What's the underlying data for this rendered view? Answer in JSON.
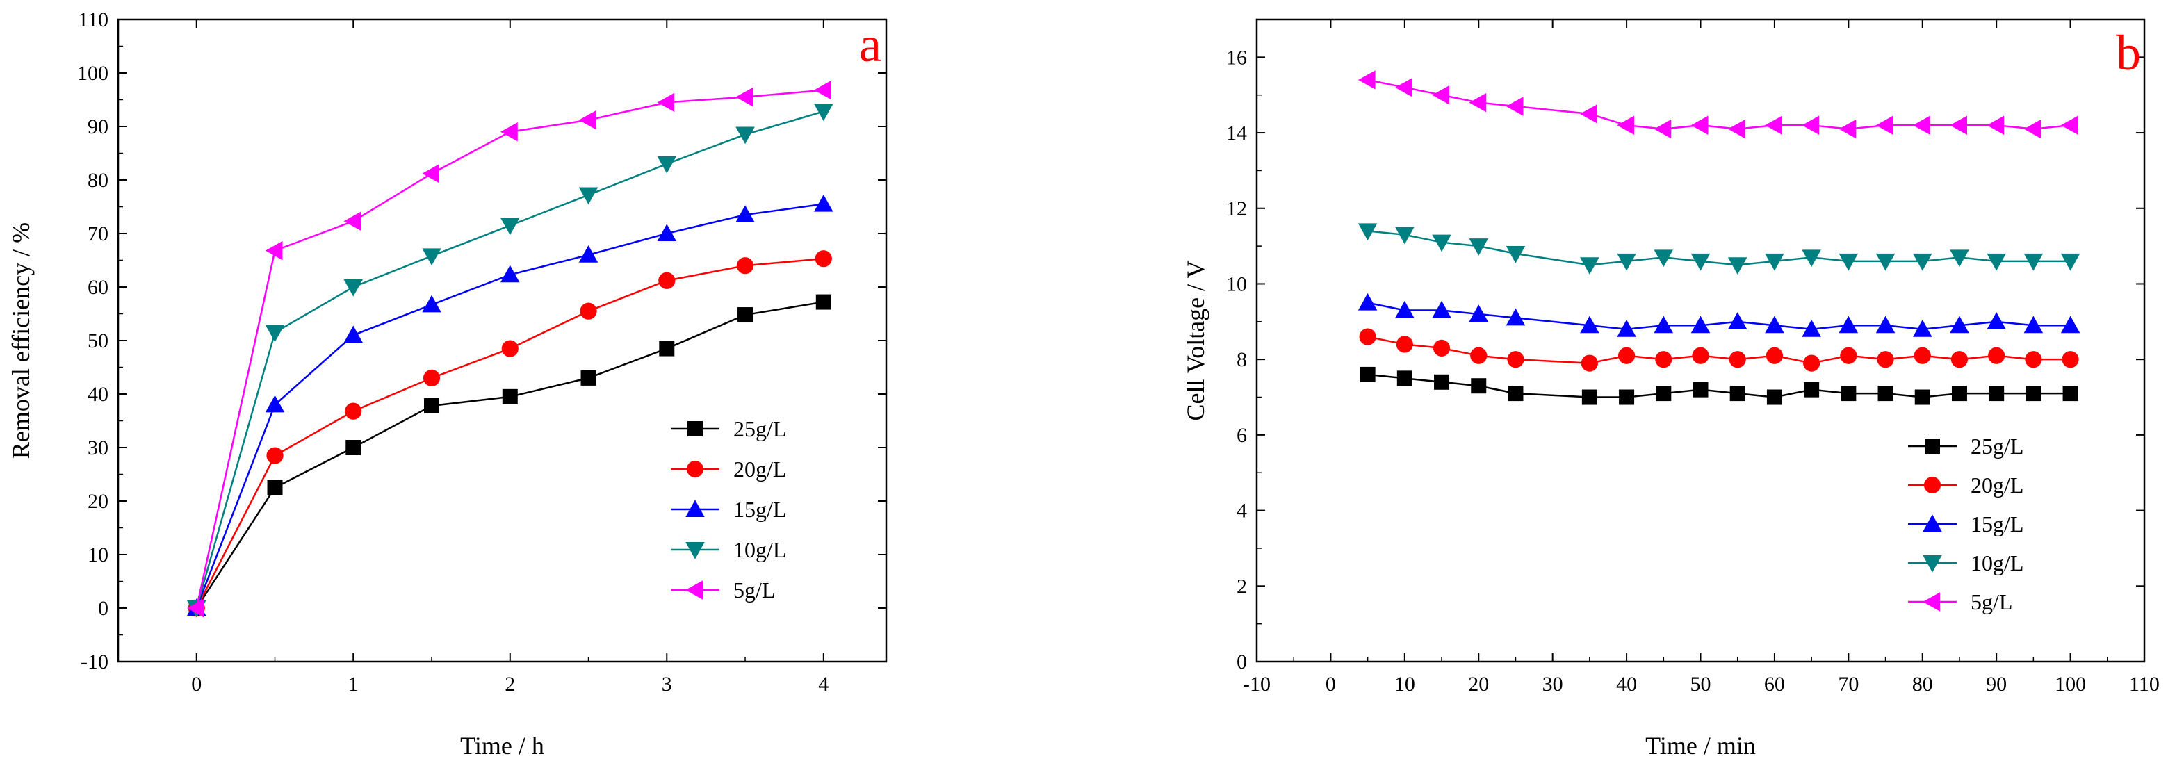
{
  "chart_data": [
    {
      "type": "line",
      "panel_label": "a",
      "xlabel": "Time / h",
      "ylabel": "Removal efficiency / %",
      "xlim": [
        -0.5,
        4.4
      ],
      "ylim": [
        -10,
        110
      ],
      "x_ticks": [
        0,
        1,
        2,
        3,
        4
      ],
      "y_ticks": [
        -10,
        0,
        10,
        20,
        30,
        40,
        50,
        60,
        70,
        80,
        90,
        100,
        110
      ],
      "x": [
        0,
        0.5,
        1,
        1.5,
        2,
        2.5,
        3,
        3.5,
        4
      ],
      "legend_position": "bottom-right",
      "series": [
        {
          "name": "25g/L",
          "color": "#000000",
          "marker": "square",
          "values": [
            0,
            22.5,
            30,
            37.8,
            39.5,
            43,
            48.5,
            54.8,
            57.2
          ]
        },
        {
          "name": "20g/L",
          "color": "#ff0000",
          "marker": "circle",
          "values": [
            0,
            28.5,
            36.8,
            43,
            48.5,
            55.5,
            61.2,
            64,
            65.3
          ]
        },
        {
          "name": "15g/L",
          "color": "#0000ff",
          "marker": "triangle-up",
          "values": [
            0,
            38,
            51,
            56.7,
            62.3,
            66,
            70,
            73.5,
            75.5
          ]
        },
        {
          "name": "10g/L",
          "color": "#008080",
          "marker": "triangle-down",
          "values": [
            0,
            51.5,
            60,
            65.8,
            71.5,
            77.2,
            83,
            88.5,
            92.8
          ]
        },
        {
          "name": "5g/L",
          "color": "#ff00ff",
          "marker": "triangle-left",
          "values": [
            0,
            66.8,
            72.3,
            81.2,
            89,
            91.2,
            94.5,
            95.5,
            96.8
          ]
        }
      ]
    },
    {
      "type": "line",
      "panel_label": "b",
      "xlabel": "Time / min",
      "ylabel": "Cell Voltage / V",
      "xlim": [
        -10,
        110
      ],
      "ylim": [
        0,
        17
      ],
      "x_ticks": [
        -10,
        0,
        10,
        20,
        30,
        40,
        50,
        60,
        70,
        80,
        90,
        100,
        110
      ],
      "y_ticks": [
        0,
        2,
        4,
        6,
        8,
        10,
        12,
        14,
        16
      ],
      "x": [
        5,
        10,
        15,
        20,
        25,
        35,
        40,
        45,
        50,
        55,
        60,
        65,
        70,
        75,
        80,
        85,
        90,
        95,
        100
      ],
      "legend_position": "bottom-right",
      "series": [
        {
          "name": "25g/L",
          "color": "#000000",
          "marker": "square",
          "values": [
            7.6,
            7.5,
            7.4,
            7.3,
            7.1,
            7.0,
            7.0,
            7.1,
            7.2,
            7.1,
            7.0,
            7.2,
            7.1,
            7.1,
            7.0,
            7.1,
            7.1,
            7.1,
            7.1
          ]
        },
        {
          "name": "20g/L",
          "color": "#ff0000",
          "marker": "circle",
          "values": [
            8.6,
            8.4,
            8.3,
            8.1,
            8.0,
            7.9,
            8.1,
            8.0,
            8.1,
            8.0,
            8.1,
            7.9,
            8.1,
            8.0,
            8.1,
            8.0,
            8.1,
            8.0,
            8.0
          ]
        },
        {
          "name": "15g/L",
          "color": "#0000ff",
          "marker": "triangle-up",
          "values": [
            9.5,
            9.3,
            9.3,
            9.2,
            9.1,
            8.9,
            8.8,
            8.9,
            8.9,
            9.0,
            8.9,
            8.8,
            8.9,
            8.9,
            8.8,
            8.9,
            9.0,
            8.9,
            8.9
          ]
        },
        {
          "name": "10g/L",
          "color": "#008080",
          "marker": "triangle-down",
          "values": [
            11.4,
            11.3,
            11.1,
            11.0,
            10.8,
            10.5,
            10.6,
            10.7,
            10.6,
            10.5,
            10.6,
            10.7,
            10.6,
            10.6,
            10.6,
            10.7,
            10.6,
            10.6,
            10.6
          ]
        },
        {
          "name": "5g/L",
          "color": "#ff00ff",
          "marker": "triangle-left",
          "values": [
            15.4,
            15.2,
            15.0,
            14.8,
            14.7,
            14.5,
            14.2,
            14.1,
            14.2,
            14.1,
            14.2,
            14.2,
            14.1,
            14.2,
            14.2,
            14.2,
            14.2,
            14.1,
            14.2
          ]
        }
      ]
    }
  ]
}
